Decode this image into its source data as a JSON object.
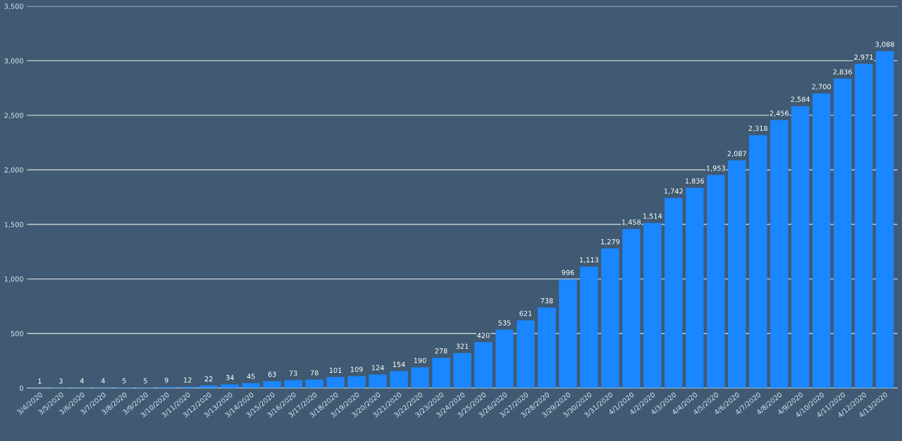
{
  "chart_data": {
    "type": "bar",
    "categories": [
      "3/4/2020",
      "3/5/2020",
      "3/6/2020",
      "3/7/2020",
      "3/8/2020",
      "3/9/2020",
      "3/10/2020",
      "3/11/2020",
      "3/12/2020",
      "3/13/2020",
      "3/14/2020",
      "3/15/2020",
      "3/16/2020",
      "3/17/2020",
      "3/18/2020",
      "3/19/2020",
      "3/20/2020",
      "3/21/2020",
      "3/22/2020",
      "3/23/2020",
      "3/24/2020",
      "3/25/2020",
      "3/26/2020",
      "3/27/2020",
      "3/28/2020",
      "3/29/2020",
      "3/30/2020",
      "3/31/2020",
      "4/1/2020",
      "4/2/2020",
      "4/3/2020",
      "4/4/2020",
      "4/5/2020",
      "4/6/2020",
      "4/7/2020",
      "4/8/2020",
      "4/9/2020",
      "4/10/2020",
      "4/11/2020",
      "4/12/2020",
      "4/13/2020"
    ],
    "values": [
      1,
      3,
      4,
      4,
      5,
      5,
      9,
      12,
      22,
      34,
      45,
      63,
      73,
      78,
      101,
      109,
      124,
      154,
      190,
      278,
      321,
      420,
      535,
      621,
      738,
      996,
      1113,
      1279,
      1458,
      1514,
      1742,
      1836,
      1953,
      2087,
      2318,
      2456,
      2584,
      2700,
      2836,
      2971,
      3088
    ],
    "value_labels": [
      "1",
      "3",
      "4",
      "4",
      "5",
      "5",
      "9",
      "12",
      "22",
      "34",
      "45",
      "63",
      "73",
      "78",
      "101",
      "109",
      "124",
      "154",
      "190",
      "278",
      "321",
      "420",
      "535",
      "621",
      "738",
      "996",
      "1,113",
      "1,279",
      "1,458",
      "1,514",
      "1,742",
      "1,836",
      "1,953",
      "2,087",
      "2,318",
      "2,456",
      "2,584",
      "2,700",
      "2,836",
      "2,971",
      "3,088"
    ],
    "color": "#1a86ff",
    "ylim": [
      0,
      3500
    ],
    "yticks": [
      {
        "value": 0,
        "label": "0"
      },
      {
        "value": 500,
        "label": "500"
      },
      {
        "value": 1000,
        "label": "1,000"
      },
      {
        "value": 1500,
        "label": "1,500"
      },
      {
        "value": 2000,
        "label": "2,000"
      },
      {
        "value": 2500,
        "label": "2,500"
      },
      {
        "value": 3000,
        "label": "3,000"
      },
      {
        "value": 3500,
        "label": "3,500"
      }
    ],
    "grid": "y"
  }
}
